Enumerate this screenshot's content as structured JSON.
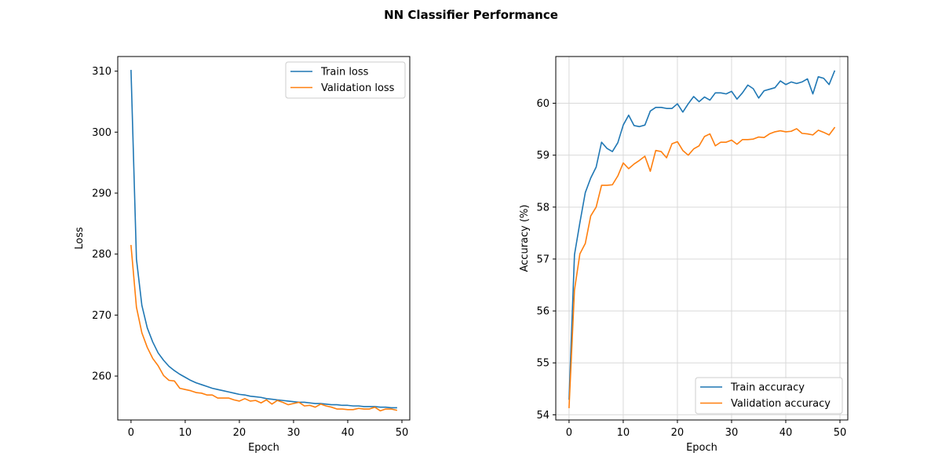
{
  "figure": {
    "title": "NN Classifier Performance"
  },
  "chart_data": [
    {
      "type": "line",
      "title": "",
      "xlabel": "Epoch",
      "ylabel": "Loss",
      "xlim": [
        -2.45,
        51.45
      ],
      "ylim": [
        252.8,
        312.4
      ],
      "xticks": [
        0,
        10,
        20,
        30,
        40,
        50
      ],
      "yticks": [
        260,
        270,
        280,
        290,
        300,
        310
      ],
      "grid": false,
      "legend_position": "upper right",
      "x": [
        0,
        1,
        2,
        3,
        4,
        5,
        6,
        7,
        8,
        9,
        10,
        11,
        12,
        13,
        14,
        15,
        16,
        17,
        18,
        19,
        20,
        21,
        22,
        23,
        24,
        25,
        26,
        27,
        28,
        29,
        30,
        31,
        32,
        33,
        34,
        35,
        36,
        37,
        38,
        39,
        40,
        41,
        42,
        43,
        44,
        45,
        46,
        47,
        48,
        49
      ],
      "series": [
        {
          "name": "Train loss",
          "color": "#1f77b4",
          "values": [
            310.1,
            279.2,
            271.6,
            267.9,
            265.6,
            263.8,
            262.6,
            261.6,
            260.9,
            260.3,
            259.8,
            259.3,
            258.9,
            258.6,
            258.3,
            258.0,
            257.8,
            257.6,
            257.4,
            257.2,
            257.0,
            256.9,
            256.7,
            256.6,
            256.5,
            256.3,
            256.2,
            256.1,
            256.0,
            255.9,
            255.8,
            255.7,
            255.7,
            255.6,
            255.5,
            255.5,
            255.4,
            255.3,
            255.3,
            255.2,
            255.2,
            255.1,
            255.1,
            255.0,
            255.0,
            255.0,
            254.9,
            254.9,
            254.8,
            254.8
          ]
        },
        {
          "name": "Validation loss",
          "color": "#ff7f0e",
          "values": [
            281.4,
            271.3,
            267.1,
            264.7,
            262.9,
            261.7,
            260.1,
            259.3,
            259.2,
            258.0,
            257.8,
            257.6,
            257.3,
            257.2,
            256.9,
            256.9,
            256.4,
            256.4,
            256.4,
            256.1,
            255.9,
            256.3,
            255.9,
            256.0,
            255.6,
            256.1,
            255.4,
            256.0,
            255.7,
            255.3,
            255.5,
            255.7,
            255.1,
            255.2,
            254.9,
            255.4,
            255.1,
            254.9,
            254.6,
            254.6,
            254.5,
            254.5,
            254.7,
            254.6,
            254.6,
            254.9,
            254.3,
            254.6,
            254.6,
            254.4
          ]
        }
      ]
    },
    {
      "type": "line",
      "title": "",
      "xlabel": "Epoch",
      "ylabel": "Accuracy (%)",
      "xlim": [
        -2.45,
        51.45
      ],
      "ylim": [
        53.9,
        60.9
      ],
      "xticks": [
        0,
        10,
        20,
        30,
        40,
        50
      ],
      "yticks": [
        54,
        55,
        56,
        57,
        58,
        59,
        60
      ],
      "grid": true,
      "legend_position": "lower right",
      "x": [
        0,
        1,
        2,
        3,
        4,
        5,
        6,
        7,
        8,
        9,
        10,
        11,
        12,
        13,
        14,
        15,
        16,
        17,
        18,
        19,
        20,
        21,
        22,
        23,
        24,
        25,
        26,
        27,
        28,
        29,
        30,
        31,
        32,
        33,
        34,
        35,
        36,
        37,
        38,
        39,
        40,
        41,
        42,
        43,
        44,
        45,
        46,
        47,
        48,
        49
      ],
      "series": [
        {
          "name": "Train accuracy",
          "color": "#1f77b4",
          "values": [
            54.3,
            57.08,
            57.7,
            58.28,
            58.56,
            58.77,
            59.25,
            59.13,
            59.07,
            59.24,
            59.58,
            59.77,
            59.57,
            59.55,
            59.58,
            59.85,
            59.92,
            59.92,
            59.9,
            59.9,
            59.99,
            59.83,
            59.99,
            60.13,
            60.03,
            60.12,
            60.06,
            60.2,
            60.2,
            60.18,
            60.23,
            60.08,
            60.2,
            60.35,
            60.28,
            60.1,
            60.24,
            60.27,
            60.3,
            60.43,
            60.36,
            60.41,
            60.38,
            60.41,
            60.47,
            60.18,
            60.51,
            60.48,
            60.36,
            60.62
          ]
        },
        {
          "name": "Validation accuracy",
          "color": "#ff7f0e",
          "values": [
            54.14,
            56.4,
            57.1,
            57.3,
            57.83,
            58.0,
            58.42,
            58.42,
            58.43,
            58.6,
            58.85,
            58.74,
            58.83,
            58.9,
            58.98,
            58.69,
            59.09,
            59.07,
            58.95,
            59.22,
            59.26,
            59.09,
            59.0,
            59.12,
            59.18,
            59.36,
            59.41,
            59.18,
            59.25,
            59.25,
            59.29,
            59.21,
            59.3,
            59.3,
            59.31,
            59.35,
            59.34,
            59.41,
            59.45,
            59.47,
            59.45,
            59.46,
            59.51,
            59.42,
            59.41,
            59.39,
            59.48,
            59.44,
            59.39,
            59.53
          ]
        }
      ]
    }
  ]
}
